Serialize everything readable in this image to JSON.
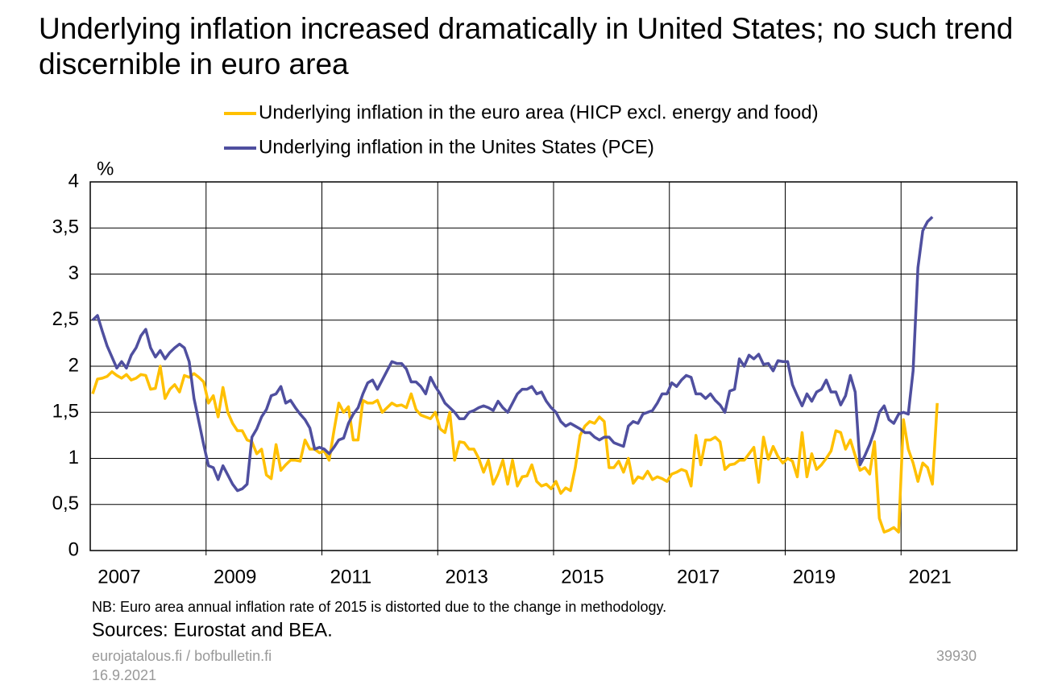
{
  "chart_data": {
    "type": "line",
    "title": "Underlying inflation increased dramatically in United States; no such trend discernible in euro area",
    "y_label": "%",
    "note": "NB: Euro area annual  inflation rate of 2015 is distorted due to the change in methodology.",
    "source": "Sources: Eurostat and BEA.",
    "footer_left": [
      "eurojatalous.fi / bofbulletin.fi",
      "16.9.2021"
    ],
    "footer_right": "39930",
    "ylim": [
      0,
      4
    ],
    "yticks": [
      0,
      {
        "value": 0.5,
        "label": "0,5"
      },
      1,
      {
        "value": 1.5,
        "label": "1,5"
      },
      2,
      {
        "value": 2.5,
        "label": "2,5"
      },
      3,
      {
        "value": 3.5,
        "label": "3,5"
      },
      4
    ],
    "grid": true,
    "categories": [
      null,
      null,
      null,
      null,
      null,
      null,
      "2007",
      null,
      null,
      null,
      null,
      null,
      null,
      null,
      null,
      null,
      null,
      null,
      null,
      null,
      null,
      null,
      null,
      null,
      null,
      null,
      null,
      null,
      null,
      null,
      "2009",
      null,
      null,
      null,
      null,
      null,
      null,
      null,
      null,
      null,
      null,
      null,
      null,
      null,
      null,
      null,
      null,
      null,
      null,
      null,
      null,
      null,
      null,
      null,
      "2011",
      null,
      null,
      null,
      null,
      null,
      null,
      null,
      null,
      null,
      null,
      null,
      null,
      null,
      null,
      null,
      null,
      null,
      null,
      null,
      null,
      null,
      null,
      null,
      "2013",
      null,
      null,
      null,
      null,
      null,
      null,
      null,
      null,
      null,
      null,
      null,
      null,
      null,
      null,
      null,
      null,
      null,
      null,
      null,
      null,
      null,
      null,
      null,
      "2015",
      null,
      null,
      null,
      null,
      null,
      null,
      null,
      null,
      null,
      null,
      null,
      null,
      null,
      null,
      null,
      null,
      null,
      null,
      null,
      null,
      null,
      null,
      null,
      "2017",
      null,
      null,
      null,
      null,
      null,
      null,
      null,
      null,
      null,
      null,
      null,
      null,
      null,
      null,
      null,
      null,
      null,
      null,
      null,
      null,
      null,
      null,
      null,
      "2019",
      null,
      null,
      null,
      null,
      null,
      null,
      null,
      null,
      null,
      null,
      null,
      null,
      null,
      null,
      null,
      null,
      null,
      null,
      null,
      null,
      null,
      null,
      null,
      "2021",
      null,
      null,
      null,
      null,
      null,
      null,
      null,
      null,
      null,
      null,
      null,
      null,
      null,
      null,
      null,
      null,
      null
    ],
    "series": [
      {
        "name": "Underlying inflation in the euro area (HICP excl. energy and food)",
        "color": "#ffc000",
        "values": [
          1.7,
          1.86,
          1.87,
          1.89,
          1.94,
          1.9,
          1.87,
          1.91,
          1.85,
          1.87,
          1.91,
          1.9,
          1.75,
          1.76,
          2.0,
          1.65,
          1.75,
          1.8,
          1.72,
          1.9,
          1.88,
          1.92,
          1.88,
          1.83,
          1.6,
          1.68,
          1.45,
          1.77,
          1.5,
          1.38,
          1.3,
          1.3,
          1.2,
          1.18,
          1.05,
          1.1,
          0.82,
          0.78,
          1.15,
          0.87,
          0.93,
          0.98,
          0.98,
          0.97,
          1.2,
          1.1,
          1.1,
          1.06,
          1.08,
          0.98,
          1.3,
          1.6,
          1.5,
          1.56,
          1.2,
          1.2,
          1.63,
          1.6,
          1.6,
          1.63,
          1.5,
          1.55,
          1.6,
          1.57,
          1.58,
          1.55,
          1.7,
          1.53,
          1.47,
          1.45,
          1.43,
          1.5,
          1.32,
          1.28,
          1.5,
          0.98,
          1.18,
          1.17,
          1.1,
          1.1,
          1.0,
          0.85,
          0.98,
          0.72,
          0.83,
          0.98,
          0.72,
          0.98,
          0.7,
          0.8,
          0.81,
          0.93,
          0.75,
          0.7,
          0.72,
          0.67,
          0.75,
          0.62,
          0.68,
          0.65,
          0.9,
          1.25,
          1.35,
          1.4,
          1.38,
          1.45,
          1.4,
          0.9,
          0.9,
          0.97,
          0.85,
          1.0,
          0.73,
          0.8,
          0.78,
          0.86,
          0.77,
          0.8,
          0.78,
          0.75,
          0.83,
          0.85,
          0.88,
          0.86,
          0.7,
          1.25,
          0.93,
          1.2,
          1.2,
          1.23,
          1.18,
          0.88,
          0.93,
          0.94,
          0.98,
          0.98,
          1.05,
          1.12,
          0.74,
          1.23,
          0.99,
          1.13,
          1.02,
          0.95,
          1.0,
          0.97,
          0.8,
          1.28,
          0.8,
          1.05,
          0.88,
          0.93,
          1.0,
          1.08,
          1.3,
          1.28,
          1.1,
          1.2,
          1.03,
          0.87,
          0.9,
          0.83,
          1.18,
          0.35,
          0.2,
          0.22,
          0.25,
          0.2,
          1.42,
          1.1,
          0.95,
          0.75,
          0.95,
          0.9,
          0.72,
          1.6,
          null,
          null,
          null,
          null,
          null,
          null,
          null,
          null,
          null,
          null,
          null,
          null,
          null,
          null,
          null,
          null
        ]
      },
      {
        "name": "Underlying inflation in the Unites States (PCE)",
        "color": "#4f4f9f",
        "values": [
          2.5,
          2.55,
          2.38,
          2.22,
          2.1,
          1.98,
          2.05,
          1.98,
          2.12,
          2.2,
          2.33,
          2.4,
          2.2,
          2.1,
          2.17,
          2.08,
          2.15,
          2.2,
          2.24,
          2.2,
          2.05,
          1.65,
          1.4,
          1.15,
          0.92,
          0.9,
          0.77,
          0.92,
          0.82,
          0.72,
          0.65,
          0.67,
          0.72,
          1.23,
          1.32,
          1.45,
          1.53,
          1.68,
          1.7,
          1.78,
          1.6,
          1.63,
          1.55,
          1.48,
          1.42,
          1.33,
          1.1,
          1.12,
          1.1,
          1.05,
          1.12,
          1.2,
          1.22,
          1.38,
          1.48,
          1.55,
          1.7,
          1.82,
          1.85,
          1.75,
          1.85,
          1.95,
          2.05,
          2.03,
          2.03,
          1.97,
          1.83,
          1.83,
          1.78,
          1.7,
          1.88,
          1.78,
          1.7,
          1.6,
          1.55,
          1.5,
          1.43,
          1.43,
          1.5,
          1.52,
          1.55,
          1.57,
          1.55,
          1.52,
          1.62,
          1.55,
          1.5,
          1.6,
          1.7,
          1.75,
          1.75,
          1.78,
          1.7,
          1.72,
          1.62,
          1.55,
          1.5,
          1.4,
          1.35,
          1.38,
          1.35,
          1.32,
          1.28,
          1.28,
          1.23,
          1.2,
          1.23,
          1.23,
          1.17,
          1.15,
          1.13,
          1.35,
          1.4,
          1.38,
          1.48,
          1.5,
          1.52,
          1.6,
          1.7,
          1.7,
          1.82,
          1.78,
          1.85,
          1.9,
          1.88,
          1.7,
          1.7,
          1.65,
          1.7,
          1.63,
          1.58,
          1.5,
          1.73,
          1.75,
          2.08,
          2.0,
          2.12,
          2.08,
          2.13,
          2.02,
          2.03,
          1.95,
          2.06,
          2.05,
          2.05,
          1.8,
          1.68,
          1.57,
          1.7,
          1.62,
          1.72,
          1.75,
          1.85,
          1.72,
          1.72,
          1.58,
          1.68,
          1.9,
          1.72,
          0.93,
          1.03,
          1.15,
          1.3,
          1.5,
          1.57,
          1.42,
          1.38,
          1.48,
          1.5,
          1.48,
          1.95,
          3.07,
          3.47,
          3.57,
          3.62,
          null,
          null,
          null,
          null,
          null,
          null,
          null,
          null,
          null,
          null,
          null,
          null,
          null,
          null,
          null,
          null,
          null
        ]
      }
    ]
  }
}
